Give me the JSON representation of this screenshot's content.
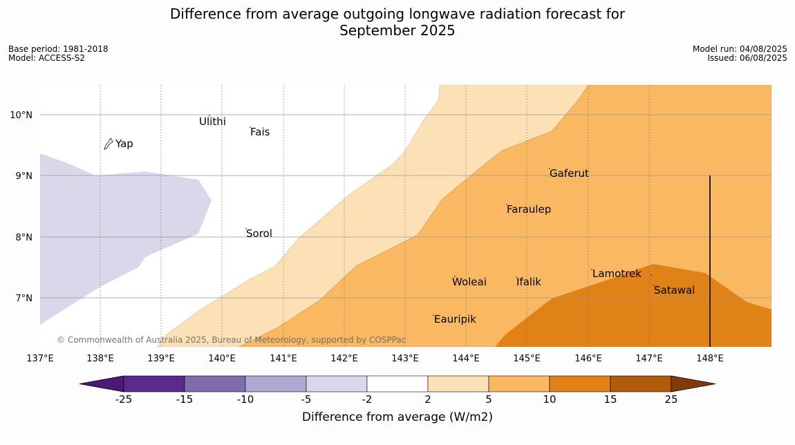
{
  "title_line1": "Difference from average outgoing longwave radiation forecast for",
  "title_line2": "September 2025",
  "base_period": "Base period: 1981-2018",
  "model": "Model: ACCESS-S2",
  "model_run": "Model run: 04/08/2025",
  "issued": "Issued: 06/08/2025",
  "copyright": "© Commonwealth of Australia 2025, Bureau of Meteorology, supported by COSPPac",
  "x_ticks": [
    "137°E",
    "138°E",
    "139°E",
    "140°E",
    "141°E",
    "142°E",
    "143°E",
    "144°E",
    "145°E",
    "146°E",
    "147°E",
    "148°E"
  ],
  "y_ticks": [
    "10°N",
    "9°N",
    "8°N",
    "7°N"
  ],
  "places": [
    {
      "name": "Ulithi"
    },
    {
      "name": "Fais"
    },
    {
      "name": "Yap"
    },
    {
      "name": "Gaferut"
    },
    {
      "name": "Faraulep"
    },
    {
      "name": "Sorol"
    },
    {
      "name": "Woleai"
    },
    {
      "name": "Ifalik"
    },
    {
      "name": "Lamotrek"
    },
    {
      "name": "Satawal"
    },
    {
      "name": "Eauripik"
    }
  ],
  "colorbar": {
    "label": "Difference from average (W/m2)",
    "ticks": [
      "-25",
      "-15",
      "-10",
      "-5",
      "-2",
      "2",
      "5",
      "10",
      "15",
      "25"
    ],
    "colors": [
      "#4b1a78",
      "#5b2a8a",
      "#7e6eab",
      "#b1a9d3",
      "#d8d8ea",
      "#ffffff",
      "#fde1b6",
      "#fbb862",
      "#e08218",
      "#b25a0c",
      "#7f3c0a"
    ]
  }
}
